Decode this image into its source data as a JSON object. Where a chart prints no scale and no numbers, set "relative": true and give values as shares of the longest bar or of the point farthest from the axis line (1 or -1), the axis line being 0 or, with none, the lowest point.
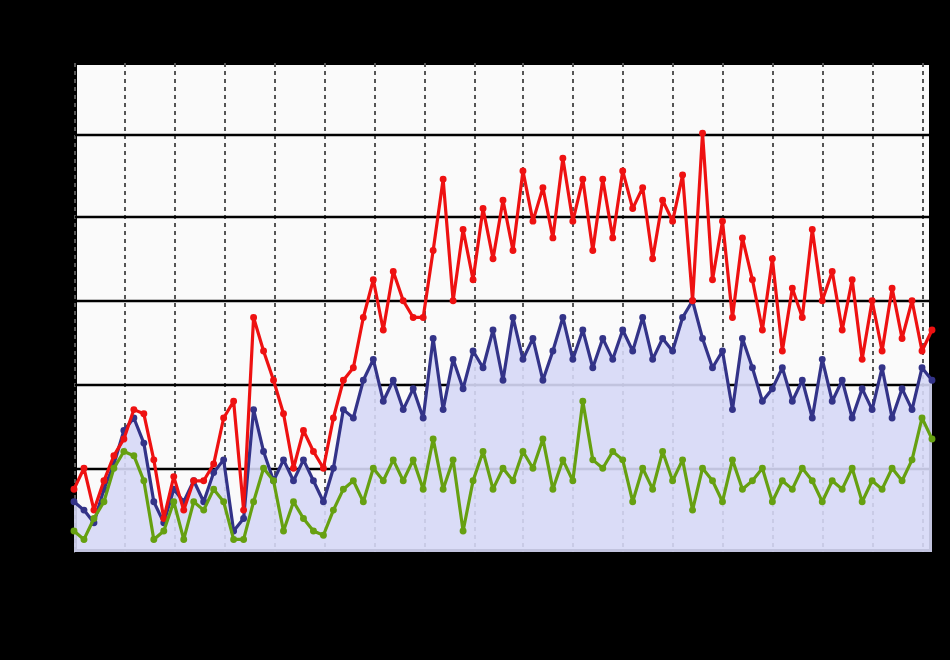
{
  "chart_data": {
    "type": "line",
    "relative": true,
    "grid": true,
    "marker": "circle",
    "line_style": "solid",
    "categories": [
      null,
      null,
      null,
      null,
      null,
      null,
      null,
      null,
      null,
      null,
      null,
      null,
      null,
      null,
      null,
      null,
      null,
      null,
      null,
      null,
      null,
      null,
      null,
      null,
      null,
      null,
      null,
      null,
      null,
      null,
      null,
      null,
      null,
      null,
      null,
      null,
      null,
      null,
      null,
      null,
      null,
      null,
      null,
      null,
      null,
      null,
      null,
      null,
      null,
      null,
      null,
      null,
      null,
      null,
      null,
      null,
      null,
      null,
      null,
      null,
      null,
      null,
      null,
      null,
      null,
      null,
      null,
      null,
      null,
      null,
      null,
      null,
      null,
      null,
      null,
      null,
      null,
      null,
      null,
      null,
      null,
      null,
      null,
      null,
      null,
      null,
      null
    ],
    "series": [
      {
        "type": "area",
        "color": "#333388",
        "values": [
          0.12,
          0.1,
          0.07,
          0.15,
          0.21,
          0.29,
          0.32,
          0.26,
          0.12,
          0.07,
          0.15,
          0.12,
          0.17,
          0.12,
          0.19,
          0.22,
          0.05,
          0.08,
          0.34,
          0.24,
          0.17,
          0.22,
          0.17,
          0.22,
          0.17,
          0.12,
          0.2,
          0.34,
          0.32,
          0.41,
          0.46,
          0.36,
          0.41,
          0.34,
          0.39,
          0.32,
          0.51,
          0.34,
          0.46,
          0.39,
          0.48,
          0.44,
          0.53,
          0.41,
          0.56,
          0.46,
          0.51,
          0.41,
          0.48,
          0.56,
          0.46,
          0.53,
          0.44,
          0.51,
          0.46,
          0.53,
          0.48,
          0.56,
          0.46,
          0.51,
          0.48,
          0.56,
          0.6,
          0.51,
          0.44,
          0.48,
          0.34,
          0.51,
          0.44,
          0.36,
          0.39,
          0.44,
          0.36,
          0.41,
          0.32,
          0.46,
          0.36,
          0.41,
          0.32,
          0.39,
          0.34,
          0.44,
          0.32,
          0.39,
          0.34,
          0.44,
          0.41
        ]
      },
      {
        "color": "#ee1111",
        "values": [
          0.15,
          0.2,
          0.1,
          0.17,
          0.23,
          0.27,
          0.34,
          0.33,
          0.22,
          0.08,
          0.18,
          0.1,
          0.17,
          0.17,
          0.21,
          0.32,
          0.36,
          0.1,
          0.56,
          0.48,
          0.41,
          0.33,
          0.2,
          0.29,
          0.24,
          0.2,
          0.32,
          0.41,
          0.44,
          0.56,
          0.65,
          0.53,
          0.67,
          0.6,
          0.56,
          0.56,
          0.72,
          0.89,
          0.6,
          0.77,
          0.65,
          0.82,
          0.7,
          0.84,
          0.72,
          0.91,
          0.79,
          0.87,
          0.75,
          0.94,
          0.79,
          0.89,
          0.72,
          0.89,
          0.75,
          0.91,
          0.82,
          0.87,
          0.7,
          0.84,
          0.79,
          0.9,
          0.6,
          1,
          0.65,
          0.79,
          0.56,
          0.75,
          0.65,
          0.53,
          0.7,
          0.48,
          0.63,
          0.56,
          0.77,
          0.6,
          0.67,
          0.53,
          0.65,
          0.46,
          0.6,
          0.48,
          0.63,
          0.51,
          0.6,
          0.48,
          0.53
        ]
      },
      {
        "color": "#66a011",
        "values": [
          0.05,
          0.03,
          0.08,
          0.12,
          0.2,
          0.24,
          0.23,
          0.17,
          0.03,
          0.05,
          0.12,
          0.03,
          0.12,
          0.1,
          0.15,
          0.12,
          0.03,
          0.03,
          0.12,
          0.2,
          0.17,
          0.05,
          0.12,
          0.08,
          0.05,
          0.04,
          0.1,
          0.15,
          0.17,
          0.12,
          0.2,
          0.17,
          0.22,
          0.17,
          0.22,
          0.15,
          0.27,
          0.15,
          0.22,
          0.05,
          0.17,
          0.24,
          0.15,
          0.2,
          0.17,
          0.24,
          0.2,
          0.27,
          0.15,
          0.22,
          0.17,
          0.36,
          0.22,
          0.2,
          0.24,
          0.22,
          0.12,
          0.2,
          0.15,
          0.24,
          0.17,
          0.22,
          0.1,
          0.2,
          0.17,
          0.12,
          0.22,
          0.15,
          0.17,
          0.2,
          0.12,
          0.17,
          0.15,
          0.2,
          0.17,
          0.12,
          0.17,
          0.15,
          0.2,
          0.12,
          0.17,
          0.15,
          0.2,
          0.17,
          0.22,
          0.32,
          0.27
        ]
      }
    ]
  }
}
